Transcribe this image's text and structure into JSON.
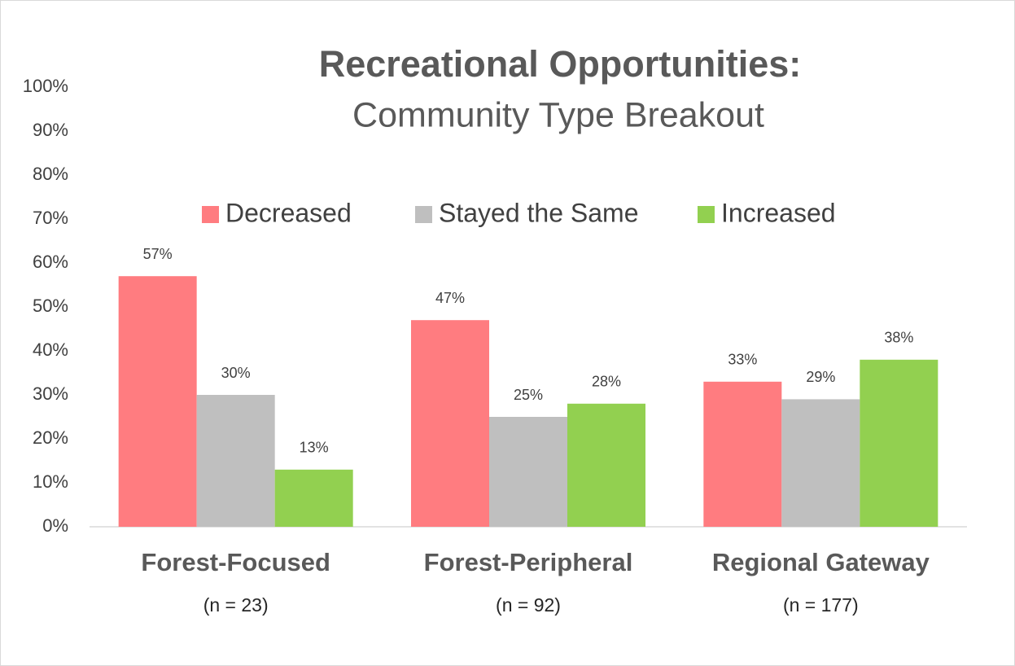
{
  "chart_data": {
    "type": "bar",
    "title": "Recreational Opportunities:",
    "subtitle": "Community Type Breakout",
    "categories": [
      "Forest-Focused",
      "Forest-Peripheral",
      "Regional Gateway"
    ],
    "category_subtitles": [
      "(n = 23)",
      "(n = 92)",
      "(n = 177)"
    ],
    "series": [
      {
        "name": "Decreased",
        "color": "#ff7c80",
        "values": [
          57,
          47,
          33
        ],
        "value_labels": [
          "57%",
          "47%",
          "33%"
        ]
      },
      {
        "name": "Stayed the Same",
        "color": "#bfbfbf",
        "values": [
          30,
          25,
          29
        ],
        "value_labels": [
          "30%",
          "25%",
          "29%"
        ]
      },
      {
        "name": "Increased",
        "color": "#92d050",
        "values": [
          13,
          28,
          38
        ],
        "value_labels": [
          "13%",
          "28%",
          "38%"
        ]
      }
    ],
    "ylim": [
      0,
      100
    ],
    "yticks": [
      {
        "value": 0,
        "label": "0%"
      },
      {
        "value": 10,
        "label": "10%"
      },
      {
        "value": 20,
        "label": "20%"
      },
      {
        "value": 30,
        "label": "30%"
      },
      {
        "value": 40,
        "label": "40%"
      },
      {
        "value": 50,
        "label": "50%"
      },
      {
        "value": 60,
        "label": "60%"
      },
      {
        "value": 70,
        "label": "70%"
      },
      {
        "value": 80,
        "label": "80%"
      },
      {
        "value": 90,
        "label": "90%"
      },
      {
        "value": 100,
        "label": "100%"
      }
    ],
    "grid": false,
    "legend": "top"
  }
}
